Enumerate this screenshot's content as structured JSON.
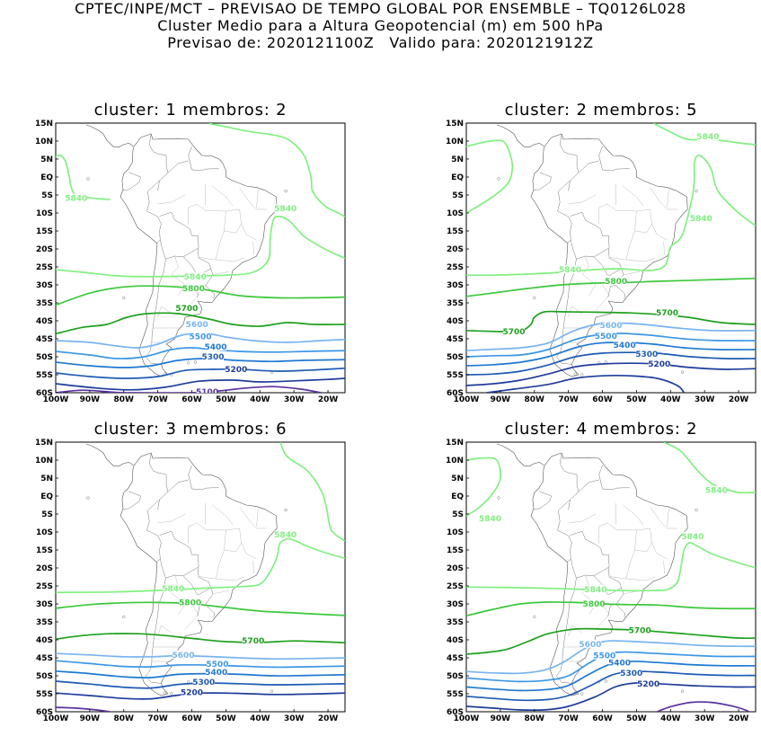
{
  "header": {
    "line1": "CPTEC/INPE/MCT – PREVISAO DE TEMPO GLOBAL POR ENSEMBLE – TQ0126L028",
    "line2": "Cluster Medio para a Altura Geopotencial (m) em 500 hPa",
    "line3": "Previsao de: 2020121100Z   Valido para: 2020121912Z"
  },
  "axes": {
    "lat_labels": [
      "15N",
      "10N",
      "5N",
      "EQ",
      "5S",
      "10S",
      "15S",
      "20S",
      "25S",
      "30S",
      "35S",
      "40S",
      "45S",
      "50S",
      "55S",
      "60S"
    ],
    "lon_labels": [
      "100W",
      "90W",
      "80W",
      "70W",
      "60W",
      "50W",
      "40W",
      "30W",
      "20W"
    ]
  },
  "colors": {
    "5840": "#80f080",
    "5800": "#3cc83c",
    "5700": "#1ea01e",
    "5600": "#78b4f0",
    "5500": "#3c96e6",
    "5400": "#1e78d2",
    "5300": "#1e5ab4",
    "5200": "#1e3c9b",
    "5100": "#5a32a0"
  },
  "panels": [
    {
      "title": "cluster: 1   membros: 2",
      "labels": [
        {
          "text": "5840",
          "level": "5840"
        },
        {
          "text": "5840",
          "level": "5840"
        },
        {
          "text": "5840",
          "level": "5840"
        },
        {
          "text": "5800",
          "level": "5800"
        },
        {
          "text": "5700",
          "level": "5700"
        },
        {
          "text": "5600",
          "level": "5600"
        },
        {
          "text": "5500",
          "level": "5500"
        },
        {
          "text": "5400",
          "level": "5400"
        },
        {
          "text": "5300",
          "level": "5300"
        },
        {
          "text": "5200",
          "level": "5200"
        },
        {
          "text": "5100",
          "level": "5100"
        }
      ]
    },
    {
      "title": "cluster: 2   membros: 5",
      "labels": [
        {
          "text": "5840",
          "level": "5840"
        },
        {
          "text": "5840",
          "level": "5840"
        },
        {
          "text": "5840",
          "level": "5840"
        },
        {
          "text": "5800",
          "level": "5800"
        },
        {
          "text": "5700",
          "level": "5700"
        },
        {
          "text": "5700",
          "level": "5700"
        },
        {
          "text": "5600",
          "level": "5600"
        },
        {
          "text": "5500",
          "level": "5500"
        },
        {
          "text": "5400",
          "level": "5400"
        },
        {
          "text": "5300",
          "level": "5300"
        },
        {
          "text": "5200",
          "level": "5200"
        }
      ]
    },
    {
      "title": "cluster: 3   membros: 6",
      "labels": [
        {
          "text": "5840",
          "level": "5840"
        },
        {
          "text": "5840",
          "level": "5840"
        },
        {
          "text": "5800",
          "level": "5800"
        },
        {
          "text": "5700",
          "level": "5700"
        },
        {
          "text": "5600",
          "level": "5600"
        },
        {
          "text": "5500",
          "level": "5500"
        },
        {
          "text": "5400",
          "level": "5400"
        },
        {
          "text": "5300",
          "level": "5300"
        },
        {
          "text": "5200",
          "level": "5200"
        }
      ]
    },
    {
      "title": "cluster: 4   membros: 2",
      "labels": [
        {
          "text": "5840",
          "level": "5840"
        },
        {
          "text": "5840",
          "level": "5840"
        },
        {
          "text": "5840",
          "level": "5840"
        },
        {
          "text": "5840",
          "level": "5840"
        },
        {
          "text": "5800",
          "level": "5800"
        },
        {
          "text": "5700",
          "level": "5700"
        },
        {
          "text": "5600",
          "level": "5600"
        },
        {
          "text": "5500",
          "level": "5500"
        },
        {
          "text": "5400",
          "level": "5400"
        },
        {
          "text": "5300",
          "level": "5300"
        },
        {
          "text": "5200",
          "level": "5200"
        }
      ]
    }
  ]
}
